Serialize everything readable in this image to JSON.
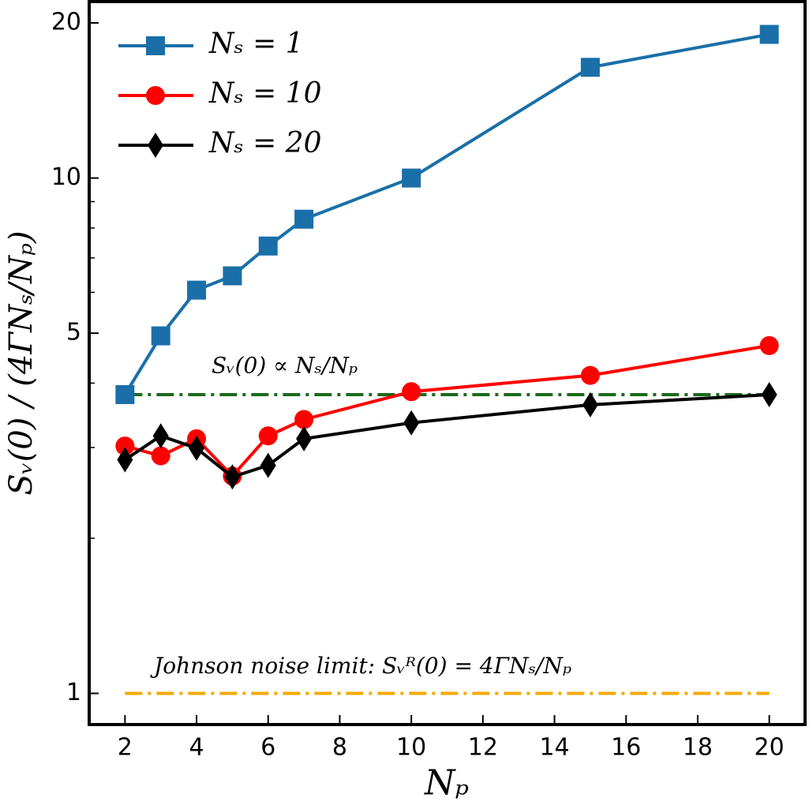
{
  "chart_data": {
    "type": "line",
    "x_label": "Nₚ",
    "y_label": "Sᵥ(0) / (4ΓNₛ/Nₚ)",
    "x": [
      2,
      3,
      4,
      5,
      6,
      7,
      10,
      15,
      20
    ],
    "series": [
      {
        "name": "Nₛ = 1",
        "color": "#1a6fa8",
        "marker": "square",
        "values": [
          3.8,
          4.94,
          6.06,
          6.46,
          7.38,
          8.32,
          10.0,
          16.4,
          19.0
        ]
      },
      {
        "name": "Nₛ = 10",
        "color": "#ff0000",
        "marker": "circle",
        "values": [
          3.02,
          2.89,
          3.12,
          2.64,
          3.16,
          3.4,
          3.85,
          4.14,
          4.73
        ]
      },
      {
        "name": "Nₛ = 20",
        "color": "#000000",
        "marker": "diamond",
        "values": [
          2.84,
          3.16,
          2.99,
          2.63,
          2.77,
          3.12,
          3.35,
          3.63,
          3.8
        ]
      }
    ],
    "reference_lines": [
      {
        "value": 3.8,
        "color": "#1a6b1a",
        "label": "Sᵥ(0) ∝ Nₛ/Nₚ"
      },
      {
        "value": 1,
        "color": "#f5a800",
        "label": "Johnson noise limit: Sᵥᴿ(0) = 4ΓNₛ/Nₚ"
      }
    ],
    "xlim": [
      1,
      21
    ],
    "xticks": [
      2,
      4,
      6,
      8,
      10,
      12,
      14,
      16,
      18,
      20
    ],
    "ylim": [
      0.87,
      22
    ],
    "yscale": "log",
    "yticks": [
      1,
      5,
      10,
      20
    ],
    "yminorticks": [
      2,
      3,
      4,
      6,
      7,
      8,
      9
    ],
    "legend": "upper left"
  }
}
